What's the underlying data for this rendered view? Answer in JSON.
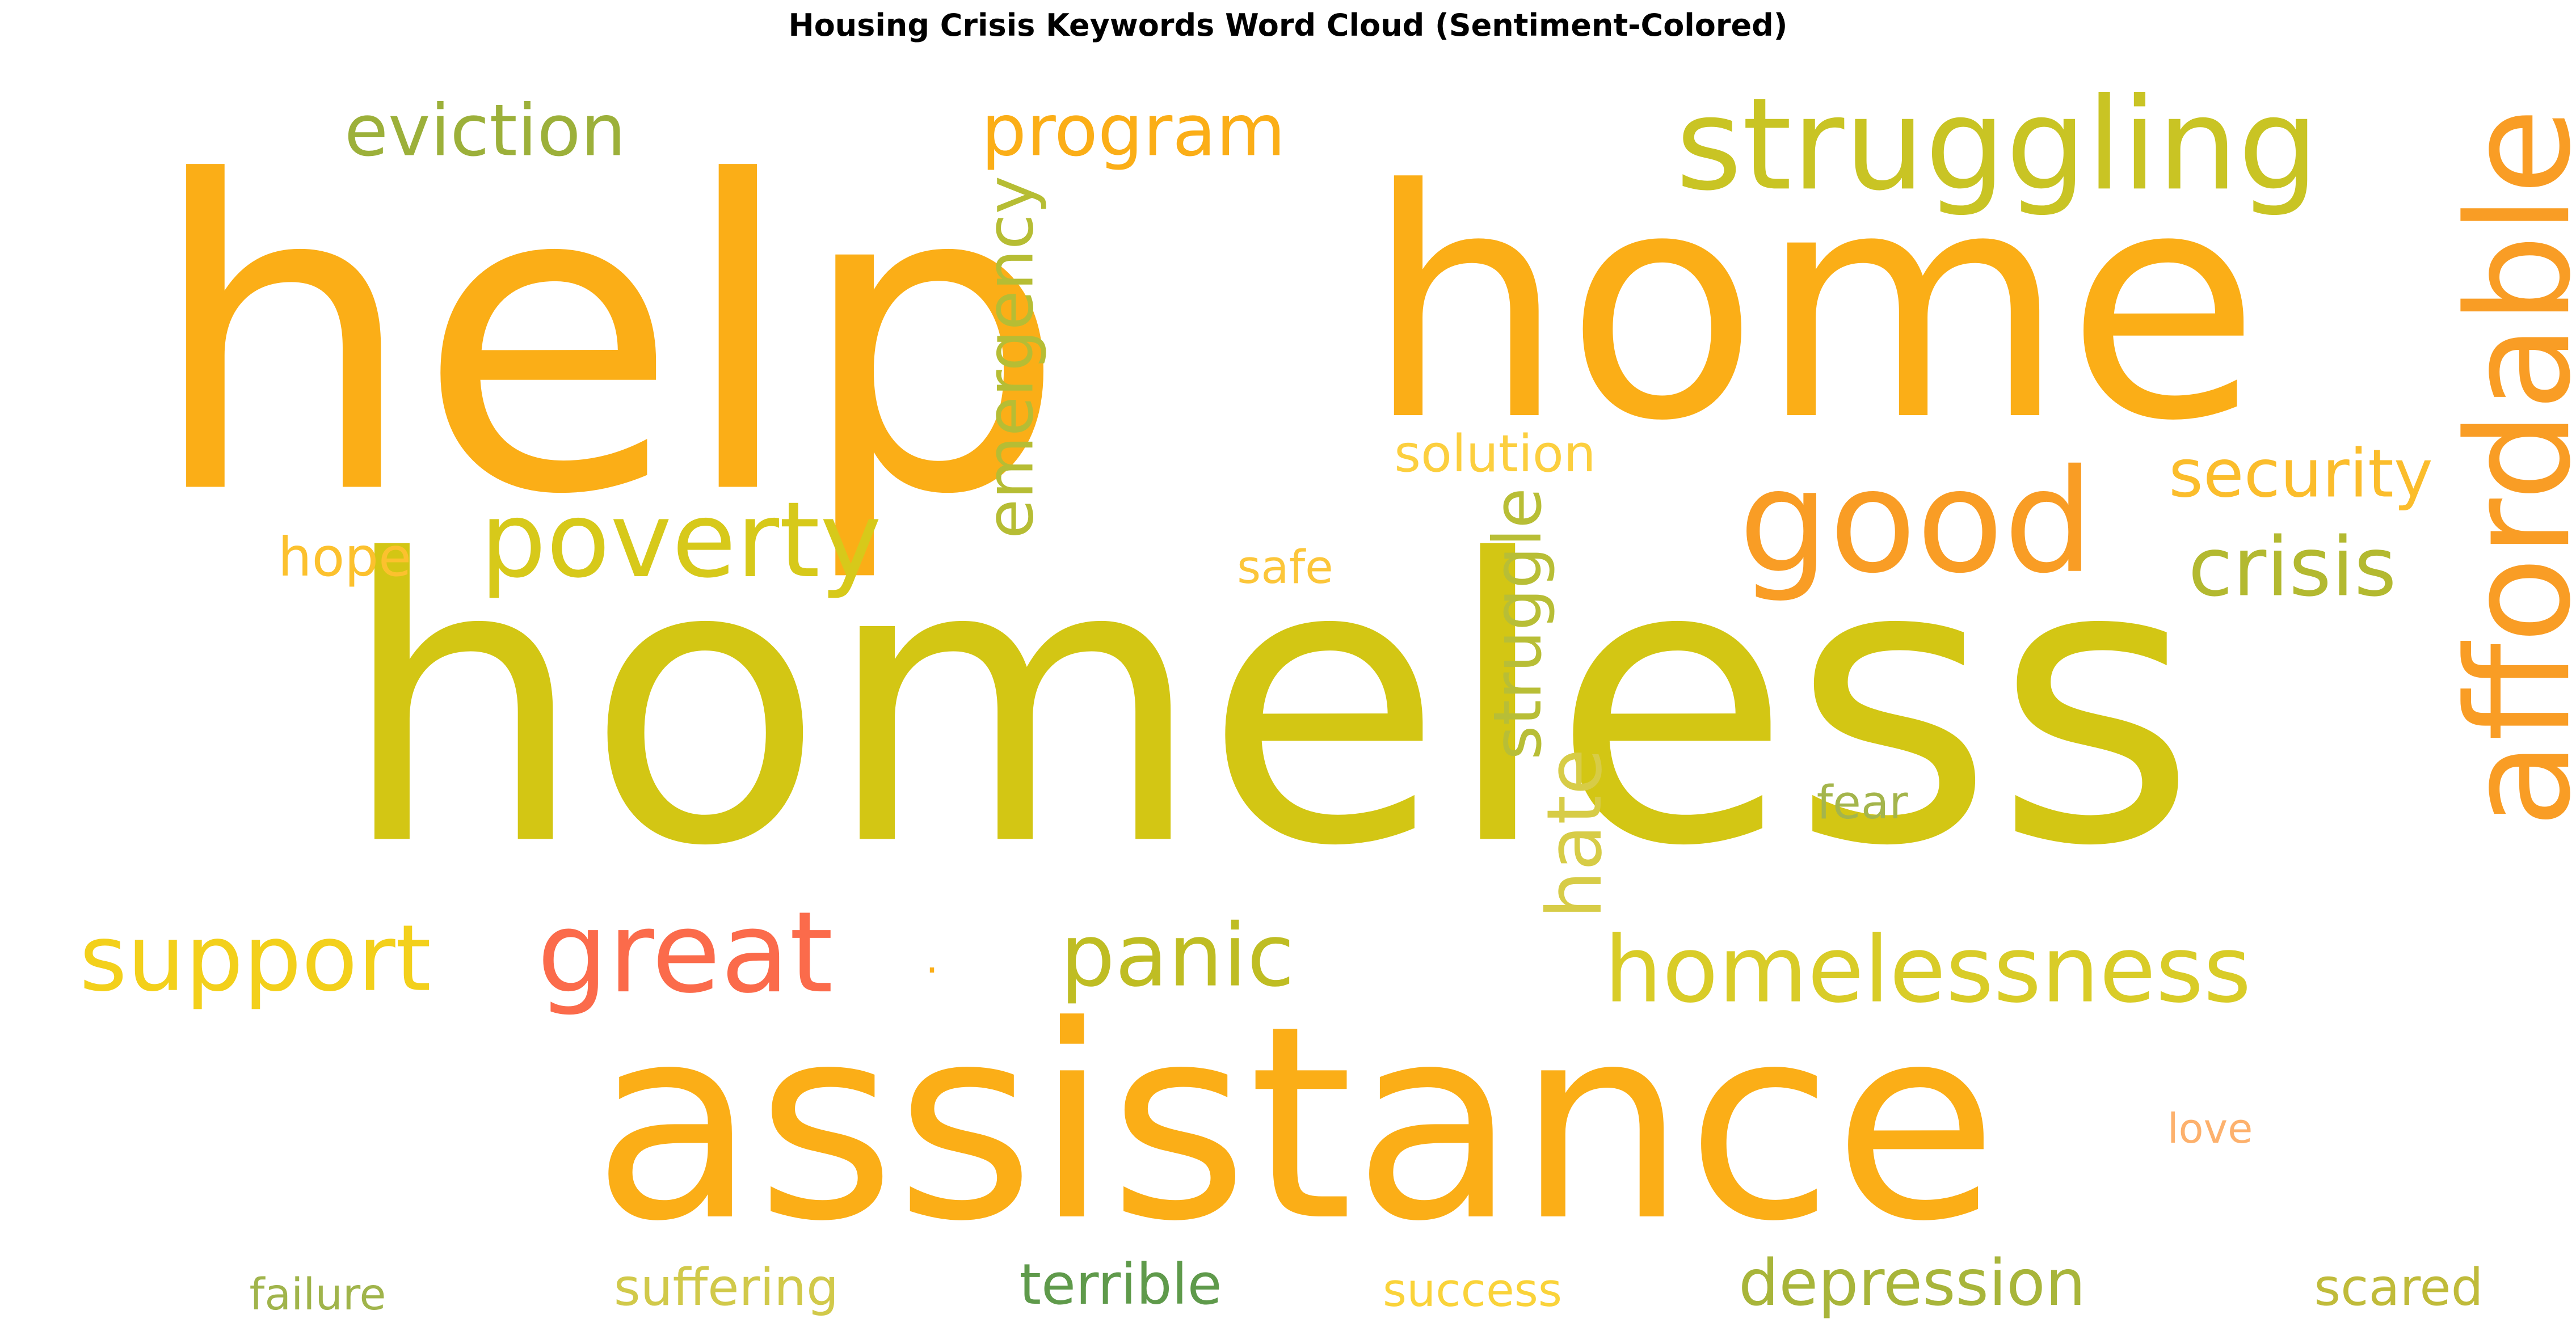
{
  "chart_data": {
    "type": "wordcloud",
    "title": "Housing Crisis Keywords Word Cloud (Sentiment-Colored)",
    "words": [
      {
        "text": "help",
        "color": "#fbae17",
        "orientation": "horizontal"
      },
      {
        "text": "home",
        "color": "#fbae17",
        "orientation": "horizontal"
      },
      {
        "text": "homeless",
        "color": "#d3c614",
        "orientation": "horizontal"
      },
      {
        "text": "assistance",
        "color": "#fbae17",
        "orientation": "horizontal"
      },
      {
        "text": "eviction",
        "color": "#9cb03a",
        "orientation": "horizontal"
      },
      {
        "text": "program",
        "color": "#fbae17",
        "orientation": "horizontal"
      },
      {
        "text": "struggling",
        "color": "#c9c424",
        "orientation": "horizontal"
      },
      {
        "text": "affordable",
        "color": "#f99d25",
        "orientation": "vertical"
      },
      {
        "text": "good",
        "color": "#f99d25",
        "orientation": "horizontal"
      },
      {
        "text": "poverty",
        "color": "#d7c91a",
        "orientation": "horizontal"
      },
      {
        "text": "security",
        "color": "#fbbd2c",
        "orientation": "horizontal"
      },
      {
        "text": "crisis",
        "color": "#b3b930",
        "orientation": "horizontal"
      },
      {
        "text": "emergency",
        "color": "#b6bd34",
        "orientation": "vertical"
      },
      {
        "text": "solution",
        "color": "#fccf3f",
        "orientation": "horizontal"
      },
      {
        "text": "hope",
        "color": "#fcc12e",
        "orientation": "horizontal"
      },
      {
        "text": "safe",
        "color": "#fcc63a",
        "orientation": "horizontal"
      },
      {
        "text": "struggle",
        "color": "#b8be36",
        "orientation": "vertical"
      },
      {
        "text": "hate",
        "color": "#d7cc47",
        "orientation": "vertical"
      },
      {
        "text": "fear",
        "color": "#a4b54c",
        "orientation": "horizontal"
      },
      {
        "text": "support",
        "color": "#f3d01b",
        "orientation": "horizontal"
      },
      {
        "text": "great",
        "color": "#fb6b4b",
        "orientation": "horizontal"
      },
      {
        "text": "panic",
        "color": "#bfbd23",
        "orientation": "horizontal"
      },
      {
        "text": "homelessness",
        "color": "#d9cc28",
        "orientation": "horizontal"
      },
      {
        "text": "love",
        "color": "#fdb16d",
        "orientation": "horizontal"
      },
      {
        "text": "failure",
        "color": "#a0b44b",
        "orientation": "horizontal"
      },
      {
        "text": "suffering",
        "color": "#d1c94a",
        "orientation": "horizontal"
      },
      {
        "text": "terrible",
        "color": "#5f9a4b",
        "orientation": "horizontal"
      },
      {
        "text": "success",
        "color": "#fad33a",
        "orientation": "horizontal"
      },
      {
        "text": "depression",
        "color": "#a8b53a",
        "orientation": "horizontal"
      },
      {
        "text": "scared",
        "color": "#c0bb3a",
        "orientation": "horizontal"
      },
      {
        "text": ".",
        "color": "#fbae17",
        "orientation": "horizontal"
      }
    ]
  }
}
